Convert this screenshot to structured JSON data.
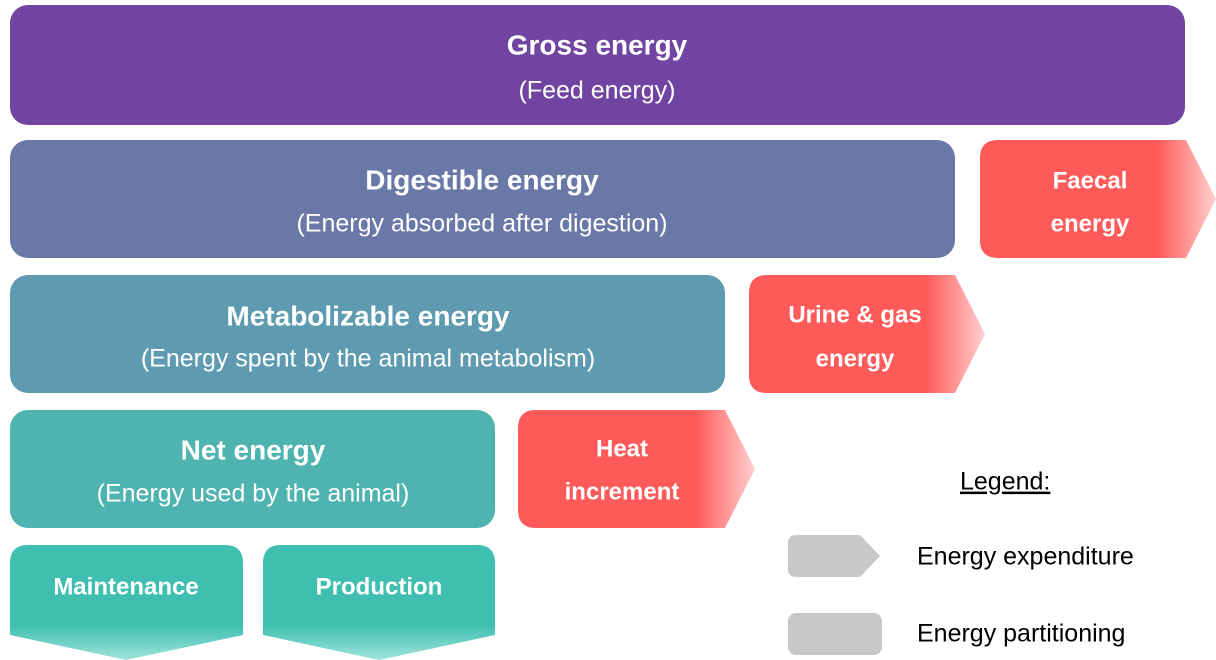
{
  "levels": [
    {
      "title": "Gross energy",
      "subtitle": "(Feed energy)"
    },
    {
      "title": "Digestible energy",
      "subtitle": "(Energy absorbed after digestion)"
    },
    {
      "title": "Metabolizable energy",
      "subtitle": "(Energy spent by the animal metabolism)"
    },
    {
      "title": "Net energy",
      "subtitle": "(Energy used by the animal)"
    }
  ],
  "losses": [
    {
      "lines": [
        "Faecal",
        "energy"
      ]
    },
    {
      "lines": [
        "Urine & gas",
        "energy"
      ]
    },
    {
      "lines": [
        "Heat",
        "increment"
      ]
    }
  ],
  "outputs": [
    "Maintenance",
    "Production"
  ],
  "legend": {
    "title": "Legend:",
    "items": [
      "Energy expenditure",
      "Energy partitioning"
    ]
  }
}
